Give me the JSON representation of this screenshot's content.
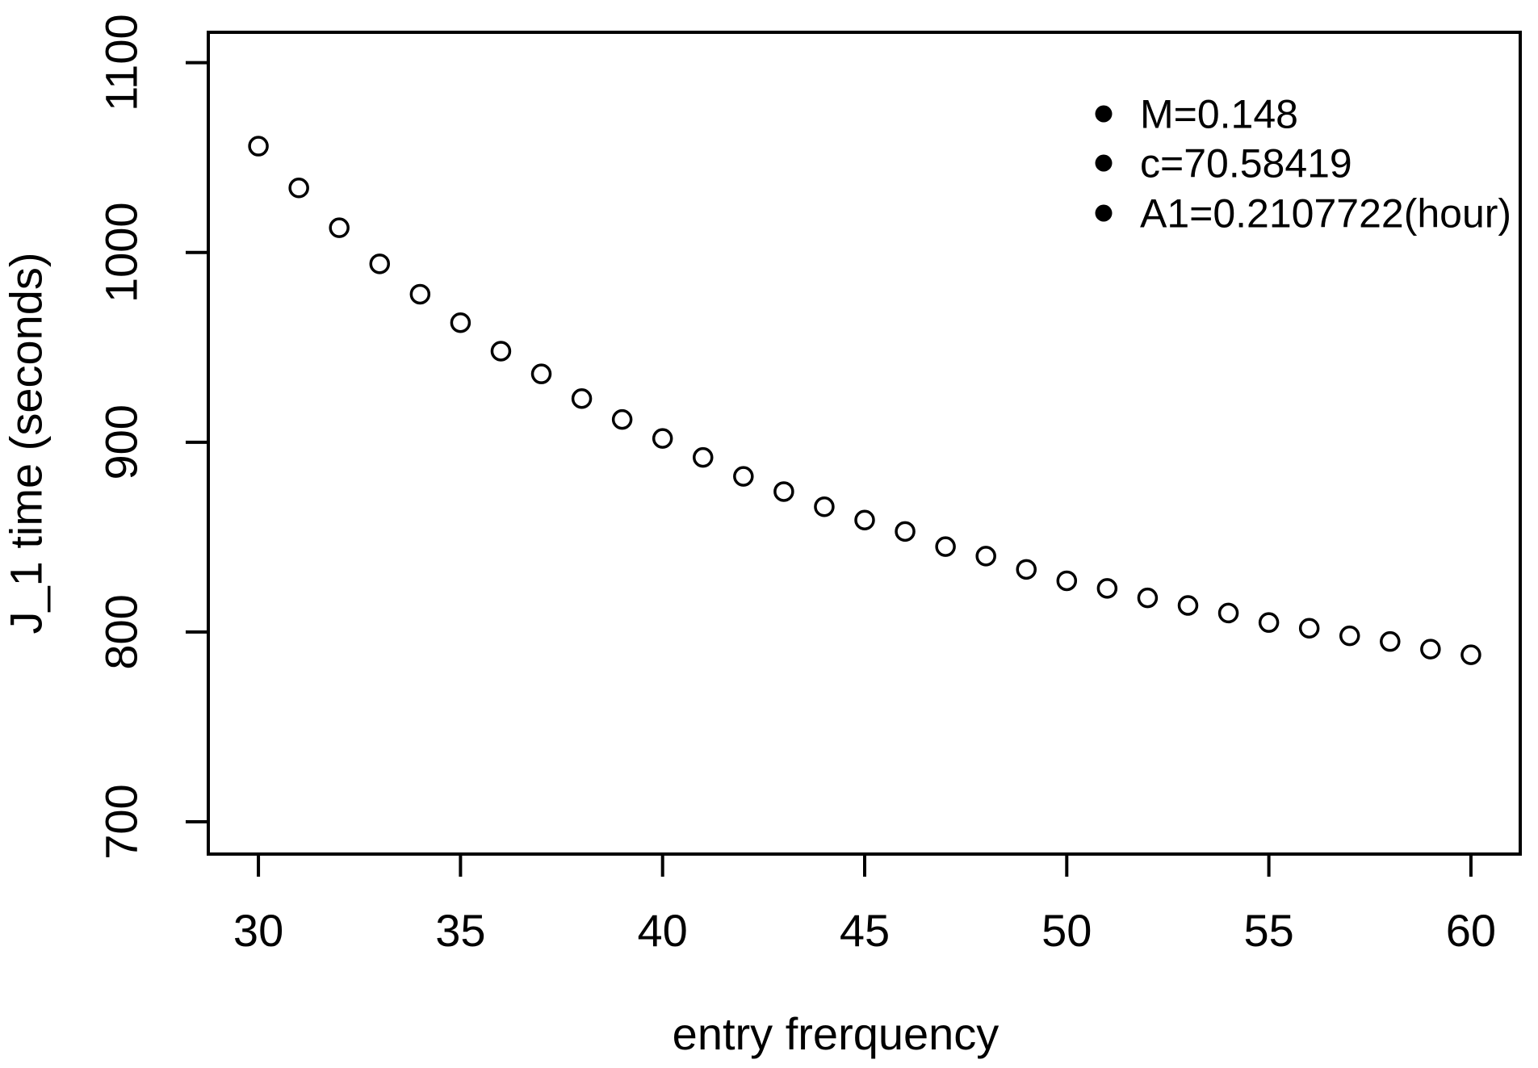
{
  "figure": {
    "background": "#ffffff",
    "ink_color": "#000000"
  },
  "chart_data": {
    "type": "scatter",
    "title": "",
    "xlabel": "entry frerquency",
    "ylabel": "J_1 time (seconds)",
    "xlim": [
      28.76,
      61.22
    ],
    "ylim": [
      683,
      1116
    ],
    "x_ticks": [
      30,
      35,
      40,
      45,
      50,
      55,
      60
    ],
    "y_ticks": [
      700,
      800,
      900,
      1000,
      1100
    ],
    "grid": false,
    "marker": "open-circle",
    "series": [
      {
        "name": "J_1 time",
        "x": [
          30,
          31,
          32,
          33,
          34,
          35,
          36,
          37,
          38,
          39,
          40,
          41,
          42,
          43,
          44,
          45,
          46,
          47,
          48,
          49,
          50,
          51,
          52,
          53,
          54,
          55,
          56,
          57,
          58,
          59,
          60
        ],
        "y": [
          1056,
          1034,
          1013,
          994,
          978,
          963,
          948,
          936,
          923,
          912,
          902,
          892,
          882,
          874,
          866,
          859,
          853,
          845,
          840,
          833,
          827,
          823,
          818,
          814,
          810,
          805,
          802,
          798,
          795,
          791,
          788
        ]
      }
    ],
    "legend": {
      "position": "top-right",
      "marker": "filled-circle",
      "entries": [
        "M=0.148",
        "c=70.58419",
        "A1=0.2107722(hour)"
      ]
    }
  }
}
